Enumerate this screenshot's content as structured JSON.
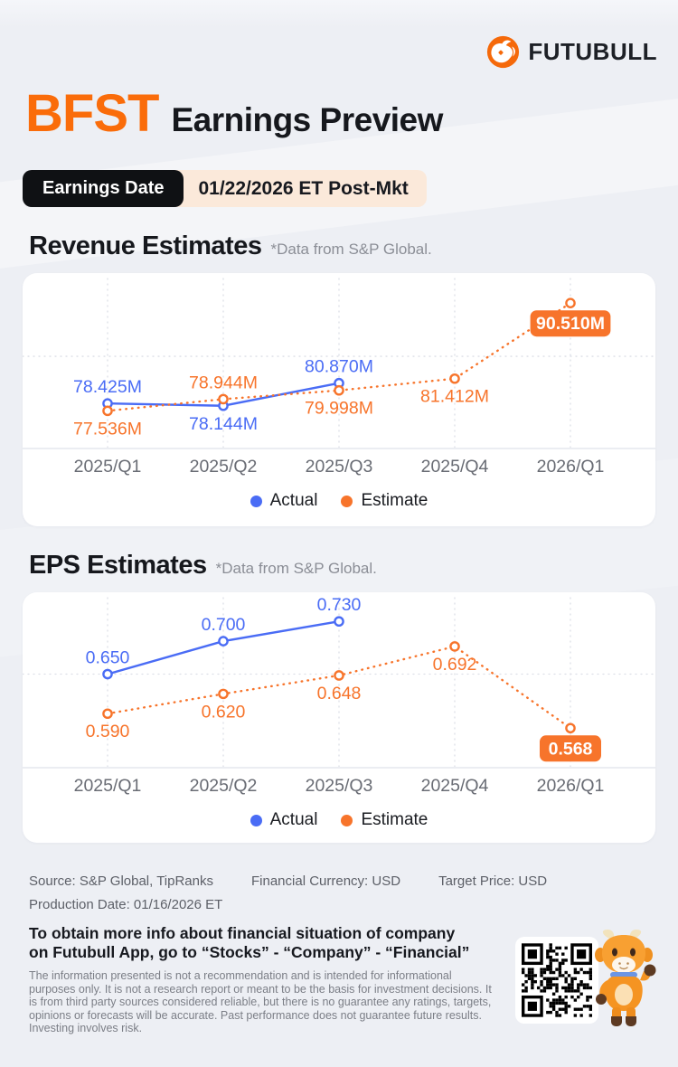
{
  "brand": {
    "name": "FUTUBULL"
  },
  "header": {
    "ticker": "BFST",
    "title": "Earnings Preview"
  },
  "earnings_date": {
    "label": "Earnings Date",
    "value": "01/22/2026 ET Post-Mkt"
  },
  "sections": {
    "revenue": {
      "title": "Revenue Estimates",
      "source_note": "*Data from S&P Global."
    },
    "eps": {
      "title": "EPS Estimates",
      "source_note": "*Data from S&P Global."
    }
  },
  "colors": {
    "actual": "#4a6cf5",
    "estimate": "#f7742b",
    "brand_orange": "#fa6c0a"
  },
  "chart_data": [
    {
      "type": "line",
      "title": "Revenue Estimates",
      "unit": "M",
      "categories": [
        "2025/Q1",
        "2025/Q2",
        "2025/Q3",
        "2025/Q4",
        "2026/Q1"
      ],
      "series": [
        {
          "name": "Actual",
          "color": "#4a6cf5",
          "style": "solid",
          "x": [
            0,
            1,
            2
          ],
          "values": [
            78.425,
            78.144,
            80.87
          ],
          "labels": [
            "78.425M",
            "78.144M",
            "80.870M"
          ],
          "label_pos": [
            "above",
            "below",
            "above"
          ]
        },
        {
          "name": "Estimate",
          "color": "#f7742b",
          "style": "dotted",
          "x": [
            0,
            1,
            2,
            3,
            4
          ],
          "values": [
            77.536,
            78.944,
            79.998,
            81.412,
            90.51
          ],
          "labels": [
            "77.536M",
            "78.944M",
            "79.998M",
            "81.412M",
            "90.510M"
          ],
          "label_pos": [
            "below",
            "above",
            "below",
            "below",
            "badge"
          ]
        }
      ],
      "ylim": [
        73.0,
        92.6
      ],
      "grid_value": 84.1,
      "grid": "dotted",
      "legend": [
        "Actual",
        "Estimate"
      ],
      "legend_position": "bottom"
    },
    {
      "type": "line",
      "title": "EPS Estimates",
      "unit": "",
      "categories": [
        "2025/Q1",
        "2025/Q2",
        "2025/Q3",
        "2025/Q4",
        "2026/Q1"
      ],
      "series": [
        {
          "name": "Actual",
          "color": "#4a6cf5",
          "style": "solid",
          "x": [
            0,
            1,
            2
          ],
          "values": [
            0.65,
            0.7,
            0.73
          ],
          "labels": [
            "0.650",
            "0.700",
            "0.730"
          ],
          "label_pos": [
            "above",
            "above",
            "above"
          ]
        },
        {
          "name": "Estimate",
          "color": "#f7742b",
          "style": "dotted",
          "x": [
            0,
            1,
            2,
            3,
            4
          ],
          "values": [
            0.59,
            0.62,
            0.648,
            0.692,
            0.568
          ],
          "labels": [
            "0.590",
            "0.620",
            "0.648",
            "0.692",
            "0.568"
          ],
          "label_pos": [
            "below",
            "below",
            "below",
            "below",
            "badge"
          ]
        }
      ],
      "ylim": [
        0.508,
        0.755
      ],
      "grid_value": 0.65,
      "grid": "dotted",
      "legend": [
        "Actual",
        "Estimate"
      ],
      "legend_position": "bottom"
    }
  ],
  "footer": {
    "source": "Source: S&P Global, TipRanks",
    "currency": "Financial Currency: USD",
    "target_price": "Target Price: USD",
    "production_date": "Production Date: 01/16/2026 ET",
    "promo_line1": "To obtain more info about financial situation of company",
    "promo_line2": "on Futubull App, go to “Stocks” - “Company” - “Financial”",
    "disclaimer": "The information presented is not a recommendation and is intended for informational purposes only. It is not a research report or meant to be the basis for investment decisions. It is from third party sources considered reliable, but there is no guarantee any ratings, targets, opinions or forecasts will be accurate. Past performance does not guarantee future results. Investing involves risk."
  }
}
